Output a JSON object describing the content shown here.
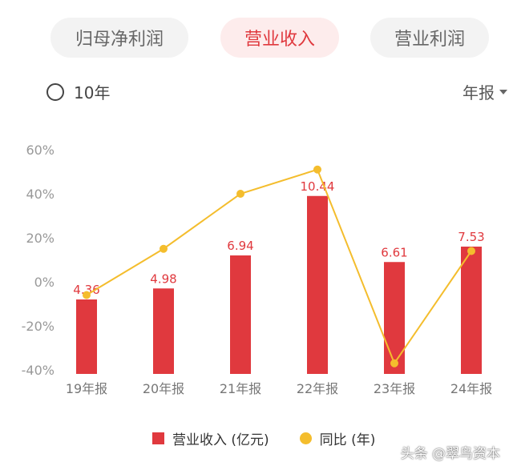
{
  "tabs": [
    {
      "label": "归母净利润",
      "active": false
    },
    {
      "label": "营业收入",
      "active": true
    },
    {
      "label": "营业利润",
      "active": false
    }
  ],
  "range_option": {
    "label": "10年"
  },
  "period_select": {
    "label": "年报"
  },
  "colors": {
    "bar": "#e0393e",
    "line": "#f4bd2d",
    "active_tab_bg": "#fdecec"
  },
  "chart_data": {
    "type": "bar",
    "categories": [
      "19年报",
      "20年报",
      "21年报",
      "22年报",
      "23年报",
      "24年报"
    ],
    "series": [
      {
        "name": "营业收入 (亿元)",
        "type": "bar",
        "values": [
          4.36,
          4.98,
          6.94,
          10.44,
          6.61,
          7.53
        ]
      },
      {
        "name": "同比 (年)",
        "type": "line",
        "values": [
          -6,
          15,
          40,
          51,
          -37,
          14
        ]
      }
    ],
    "y_axis": {
      "ticks": [
        "60%",
        "40%",
        "20%",
        "0%",
        "-20%",
        "-40%"
      ],
      "ylim": [
        -40,
        60
      ]
    },
    "bar_heights_pct_scale": [
      -8,
      -3,
      12,
      39,
      9,
      16
    ]
  },
  "legend": {
    "bar_label": "营业收入 (亿元)",
    "line_label": "同比 (年)"
  },
  "watermark": "头条 @翠鸟资本"
}
